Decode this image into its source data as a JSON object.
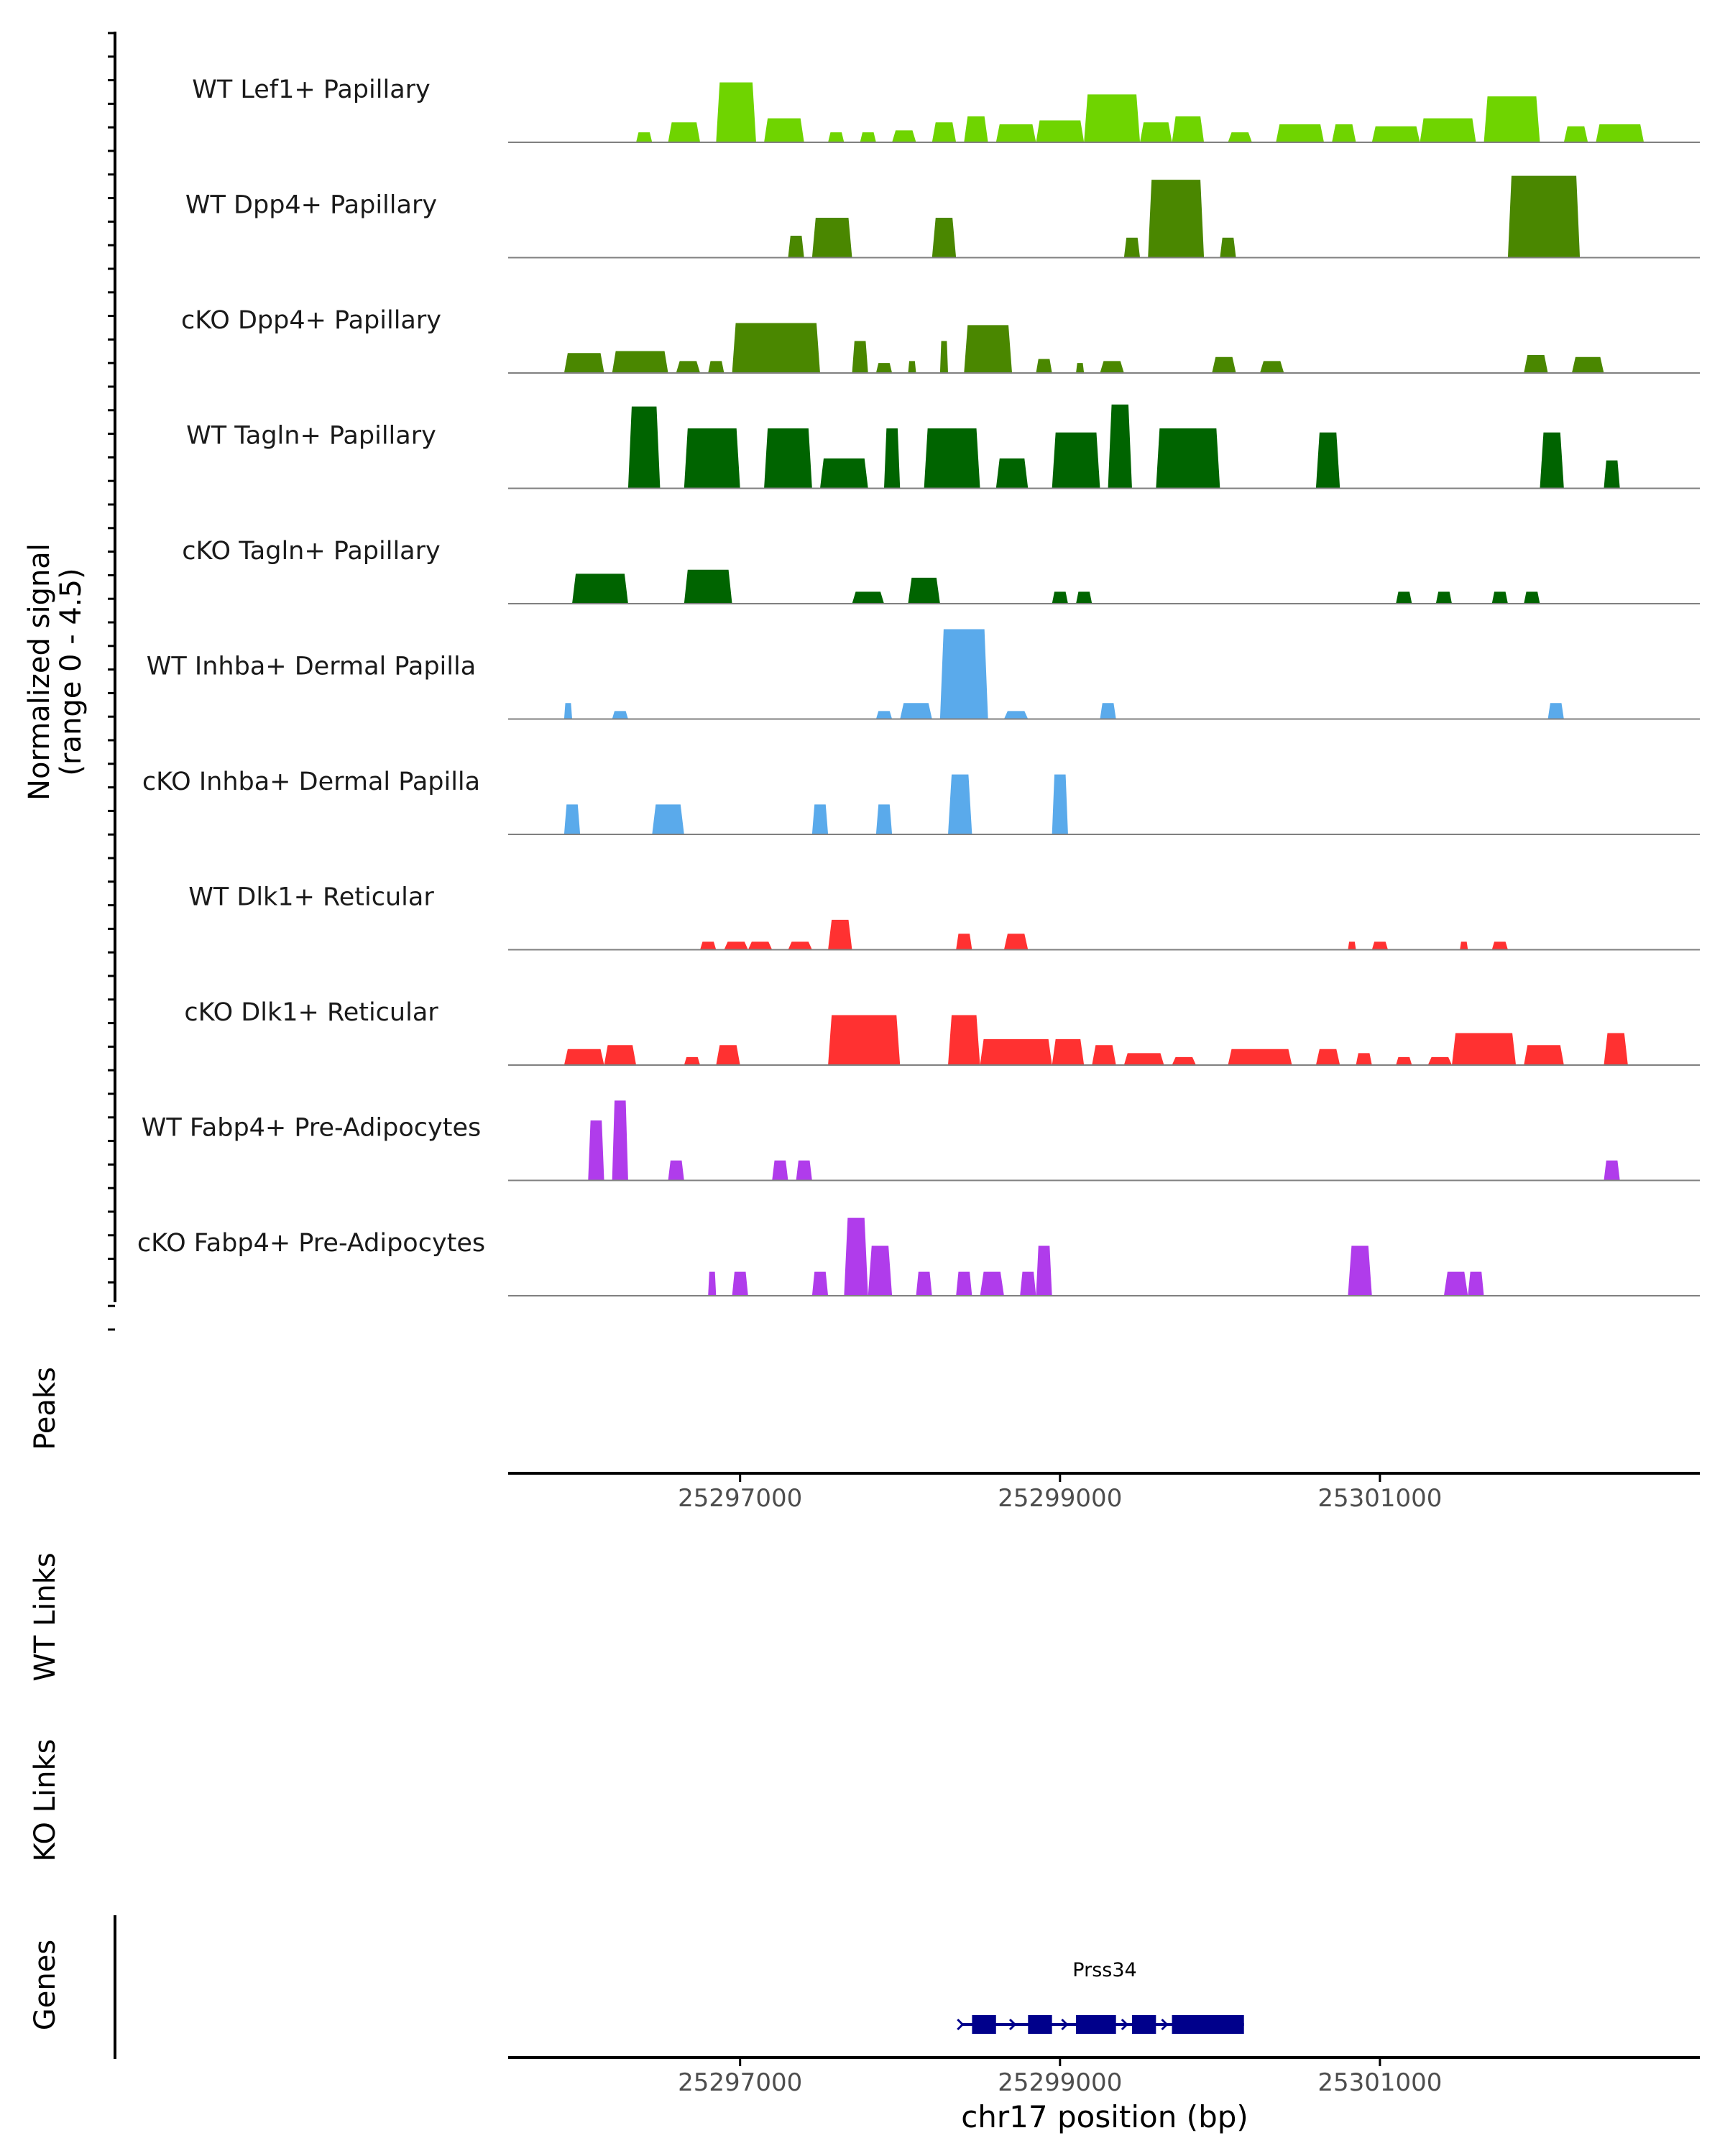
{
  "chart_data": {
    "type": "area",
    "title": "",
    "xlabel": "chr17 position (bp)",
    "ylabel": "Normalized signal\n(range 0 - 4.5)",
    "x_range": [
      25295550,
      25303000
    ],
    "x_ticks": [
      25297000,
      25299000,
      25301000
    ],
    "x_tick_labels": [
      "25297000",
      "25299000",
      "25301000"
    ],
    "y_range": [
      0,
      4.5
    ],
    "series": [
      {
        "name": "WT Lef1+ Papillary",
        "color": "#6fd400",
        "bins": [
          [
            25296350,
            25296450,
            0.5
          ],
          [
            25296550,
            25296750,
            1.0
          ],
          [
            25296850,
            25297100,
            3.0
          ],
          [
            25297150,
            25297400,
            1.2
          ],
          [
            25297550,
            25297650,
            0.5
          ],
          [
            25297750,
            25297850,
            0.5
          ],
          [
            25297950,
            25298100,
            0.6
          ],
          [
            25298200,
            25298350,
            1.0
          ],
          [
            25298400,
            25298550,
            1.3
          ],
          [
            25298600,
            25298850,
            0.9
          ],
          [
            25298850,
            25299150,
            1.1
          ],
          [
            25299150,
            25299500,
            2.4
          ],
          [
            25299500,
            25299700,
            1.0
          ],
          [
            25299700,
            25299900,
            1.3
          ],
          [
            25300050,
            25300200,
            0.5
          ],
          [
            25300350,
            25300650,
            0.9
          ],
          [
            25300700,
            25300850,
            0.9
          ],
          [
            25300950,
            25301250,
            0.8
          ],
          [
            25301250,
            25301600,
            1.2
          ],
          [
            25301650,
            25302000,
            2.3
          ],
          [
            25302150,
            25302300,
            0.8
          ],
          [
            25302350,
            25302650,
            0.9
          ]
        ]
      },
      {
        "name": "WT Dpp4+ Papillary",
        "color": "#4a8700",
        "bins": [
          [
            25296850,
            25296900,
            0
          ],
          [
            25297300,
            25297400,
            1.1
          ],
          [
            25297450,
            25297700,
            2.0
          ],
          [
            25298200,
            25298350,
            2.0
          ],
          [
            25299400,
            25299500,
            1.0
          ],
          [
            25299550,
            25299900,
            3.9
          ],
          [
            25300000,
            25300100,
            1.0
          ],
          [
            25301800,
            25302250,
            4.1
          ]
        ]
      },
      {
        "name": "cKO Dpp4+ Papillary",
        "color": "#4a8700",
        "bins": [
          [
            25295900,
            25296150,
            1.0
          ],
          [
            25296200,
            25296550,
            1.1
          ],
          [
            25296600,
            25296750,
            0.6
          ],
          [
            25296800,
            25296900,
            0.6
          ],
          [
            25296950,
            25297500,
            2.5
          ],
          [
            25297700,
            25297800,
            1.6
          ],
          [
            25297850,
            25297950,
            0.5
          ],
          [
            25298050,
            25298100,
            0.6
          ],
          [
            25298250,
            25298300,
            1.6
          ],
          [
            25298400,
            25298700,
            2.4
          ],
          [
            25298850,
            25298950,
            0.7
          ],
          [
            25299100,
            25299150,
            0.5
          ],
          [
            25299250,
            25299400,
            0.6
          ],
          [
            25299950,
            25300100,
            0.8
          ],
          [
            25300250,
            25300400,
            0.6
          ],
          [
            25301900,
            25302050,
            0.9
          ],
          [
            25302200,
            25302400,
            0.8
          ]
        ]
      },
      {
        "name": "WT Tagln+ Papillary",
        "color": "#006400",
        "bins": [
          [
            25296300,
            25296500,
            4.1
          ],
          [
            25296650,
            25297000,
            3.0
          ],
          [
            25297150,
            25297450,
            3.0
          ],
          [
            25297500,
            25297800,
            1.5
          ],
          [
            25297900,
            25298000,
            3.0
          ],
          [
            25298150,
            25298500,
            3.0
          ],
          [
            25298600,
            25298800,
            1.5
          ],
          [
            25298950,
            25299250,
            2.8
          ],
          [
            25299300,
            25299450,
            4.2
          ],
          [
            25299600,
            25300000,
            3.0
          ],
          [
            25300600,
            25300750,
            2.8
          ],
          [
            25302000,
            25302150,
            2.8
          ],
          [
            25302400,
            25302500,
            1.4
          ]
        ]
      },
      {
        "name": "cKO Tagln+ Papillary",
        "color": "#006400",
        "bins": [
          [
            25295950,
            25296300,
            1.5
          ],
          [
            25296650,
            25296950,
            1.7
          ],
          [
            25297700,
            25297900,
            0.6
          ],
          [
            25298050,
            25298250,
            1.3
          ],
          [
            25298950,
            25299050,
            0.6
          ],
          [
            25299100,
            25299200,
            0.6
          ],
          [
            25301100,
            25301200,
            0.6
          ],
          [
            25301350,
            25301450,
            0.6
          ],
          [
            25301700,
            25301800,
            0.6
          ],
          [
            25301900,
            25302000,
            0.6
          ]
        ]
      },
      {
        "name": "WT Inhba+ Dermal Papilla",
        "color": "#5aaaeb",
        "bins": [
          [
            25295900,
            25295950,
            0.8
          ],
          [
            25296200,
            25296300,
            0.4
          ],
          [
            25297850,
            25297950,
            0.4
          ],
          [
            25298000,
            25298200,
            0.8
          ],
          [
            25298250,
            25298550,
            4.5
          ],
          [
            25298650,
            25298800,
            0.4
          ],
          [
            25299250,
            25299350,
            0.8
          ],
          [
            25302050,
            25302150,
            0.8
          ]
        ]
      },
      {
        "name": "cKO Inhba+ Dermal Papilla",
        "color": "#5aaaeb",
        "bins": [
          [
            25295900,
            25296000,
            1.5
          ],
          [
            25296450,
            25296650,
            1.5
          ],
          [
            25297450,
            25297550,
            1.5
          ],
          [
            25297850,
            25297950,
            1.5
          ],
          [
            25298300,
            25298450,
            3.0
          ],
          [
            25298950,
            25299050,
            3.0
          ]
        ]
      },
      {
        "name": "WT Dlk1+ Reticular",
        "color": "#ff3131",
        "bins": [
          [
            25296750,
            25296850,
            0.4
          ],
          [
            25296900,
            25297050,
            0.4
          ],
          [
            25297050,
            25297200,
            0.4
          ],
          [
            25297300,
            25297450,
            0.4
          ],
          [
            25297550,
            25297700,
            1.5
          ],
          [
            25298350,
            25298450,
            0.8
          ],
          [
            25298650,
            25298800,
            0.8
          ],
          [
            25300800,
            25300850,
            0.4
          ],
          [
            25300950,
            25301050,
            0.4
          ],
          [
            25301500,
            25301550,
            0.4
          ],
          [
            25301700,
            25301800,
            0.4
          ]
        ]
      },
      {
        "name": "cKO Dlk1+ Reticular",
        "color": "#ff3131",
        "bins": [
          [
            25295900,
            25296150,
            0.8
          ],
          [
            25296150,
            25296350,
            1.0
          ],
          [
            25296650,
            25296750,
            0.4
          ],
          [
            25296850,
            25297000,
            1.0
          ],
          [
            25297550,
            25298000,
            2.5
          ],
          [
            25298300,
            25298500,
            2.5
          ],
          [
            25298500,
            25298950,
            1.3
          ],
          [
            25298950,
            25299150,
            1.3
          ],
          [
            25299200,
            25299350,
            1.0
          ],
          [
            25299400,
            25299650,
            0.6
          ],
          [
            25299700,
            25299850,
            0.4
          ],
          [
            25300050,
            25300450,
            0.8
          ],
          [
            25300600,
            25300750,
            0.8
          ],
          [
            25300850,
            25300950,
            0.6
          ],
          [
            25301100,
            25301200,
            0.4
          ],
          [
            25301300,
            25301450,
            0.4
          ],
          [
            25301450,
            25301850,
            1.6
          ],
          [
            25301900,
            25302150,
            1.0
          ],
          [
            25302400,
            25302550,
            1.6
          ]
        ]
      },
      {
        "name": "WT Fabp4+ Pre-Adipocytes",
        "color": "#b03ceb",
        "bins": [
          [
            25296050,
            25296150,
            3.0
          ],
          [
            25296200,
            25296300,
            4.0
          ],
          [
            25296550,
            25296650,
            1.0
          ],
          [
            25297200,
            25297300,
            1.0
          ],
          [
            25297350,
            25297450,
            1.0
          ],
          [
            25302400,
            25302500,
            1.0
          ]
        ]
      },
      {
        "name": "cKO Fabp4+ Pre-Adipocytes",
        "color": "#b03ceb",
        "bins": [
          [
            25296800,
            25296850,
            1.2
          ],
          [
            25296950,
            25297050,
            1.2
          ],
          [
            25297450,
            25297550,
            1.2
          ],
          [
            25297650,
            25297800,
            3.9
          ],
          [
            25297800,
            25297950,
            2.5
          ],
          [
            25298100,
            25298200,
            1.2
          ],
          [
            25298350,
            25298450,
            1.2
          ],
          [
            25298500,
            25298650,
            1.2
          ],
          [
            25298750,
            25298850,
            1.2
          ],
          [
            25298850,
            25298950,
            2.5
          ],
          [
            25300800,
            25300950,
            2.5
          ],
          [
            25301400,
            25301550,
            1.2
          ],
          [
            25301550,
            25301650,
            1.2
          ]
        ]
      }
    ],
    "tracks": [
      "Peaks",
      "WT Links",
      "KO Links",
      "Genes"
    ],
    "gene": {
      "name": "Prss34",
      "start": 25298400,
      "end": 25300150,
      "exons": [
        [
          25298450,
          25298600
        ],
        [
          25298800,
          25298950
        ],
        [
          25299100,
          25299350
        ],
        [
          25299450,
          25299600
        ],
        [
          25299700,
          25300150
        ]
      ]
    },
    "gene_color": "#00008b",
    "axis_color": "#000000",
    "baseline_color": "#808080"
  }
}
